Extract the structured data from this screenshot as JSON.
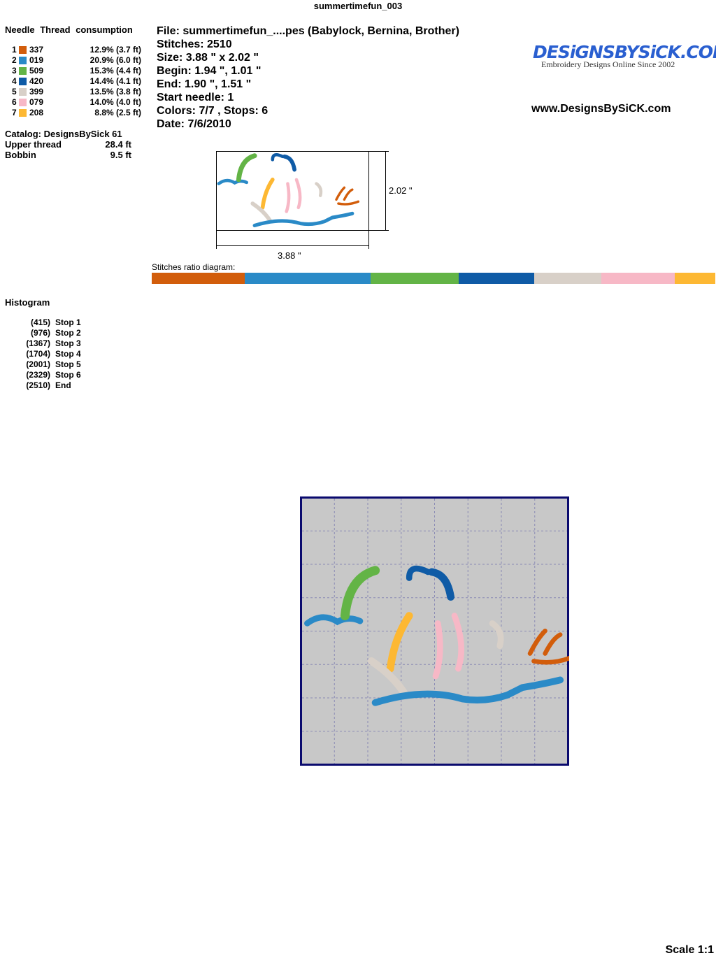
{
  "title": "summertimefun_003",
  "needle_header": "Needle Thread consumption",
  "needles": [
    {
      "n": "1",
      "color": "#d25d0b",
      "code": "337",
      "consumption": "12.9% (3.7 ft)"
    },
    {
      "n": "2",
      "color": "#2a8ac7",
      "code": "019",
      "consumption": "20.9% (6.0 ft)"
    },
    {
      "n": "3",
      "color": "#63b446",
      "code": "509",
      "consumption": "15.3% (4.4 ft)"
    },
    {
      "n": "4",
      "color": "#0f5ba6",
      "code": "420",
      "consumption": "14.4% (4.1 ft)"
    },
    {
      "n": "5",
      "color": "#d8d0c8",
      "code": "399",
      "consumption": "13.5% (3.8 ft)"
    },
    {
      "n": "6",
      "color": "#f7b8c6",
      "code": "079",
      "consumption": "14.0% (4.0 ft)"
    },
    {
      "n": "7",
      "color": "#fdb833",
      "code": "208",
      "consumption": "8.8% (2.5 ft)"
    }
  ],
  "catalog": "Catalog: DesignsBySick 61",
  "upper_thread": {
    "label": "Upper thread",
    "value": "28.4 ft"
  },
  "bobbin": {
    "label": "Bobbin",
    "value": "9.5 ft"
  },
  "details": [
    "File: summertimefun_....pes  (Babylock, Bernina, Brother)",
    "Stitches: 2510",
    "Size: 3.88 \" x 2.02 \"",
    "Begin: 1.94 \", 1.01 \"",
    "End: 1.90 \", 1.51 \"",
    "Start needle: 1",
    "Colors: 7/7 , Stops: 6",
    "Date: 7/6/2010"
  ],
  "logo": {
    "brand": "DESiGNSBYSiCK.COM",
    "tagline": "Embroidery Designs Online Since 2002"
  },
  "url": "www.DesignsBySiCK.com",
  "dims": {
    "height": "2.02 \"",
    "width": "3.88 \""
  },
  "ratio_label": "Stitches ratio diagram:",
  "histogram_title": "Histogram",
  "histogram": [
    {
      "count": "(415)",
      "label": "Stop 1",
      "v": 415
    },
    {
      "count": "(976)",
      "label": "Stop 2",
      "v": 976
    },
    {
      "count": "(1367)",
      "label": "Stop 3",
      "v": 1367
    },
    {
      "count": "(1704)",
      "label": "Stop 4",
      "v": 1704
    },
    {
      "count": "(2001)",
      "label": "Stop 5",
      "v": 2001
    },
    {
      "count": "(2329)",
      "label": "Stop 6",
      "v": 2329
    },
    {
      "count": "(2510)",
      "label": "End",
      "v": 2510
    }
  ],
  "scale": "Scale 1:1"
}
